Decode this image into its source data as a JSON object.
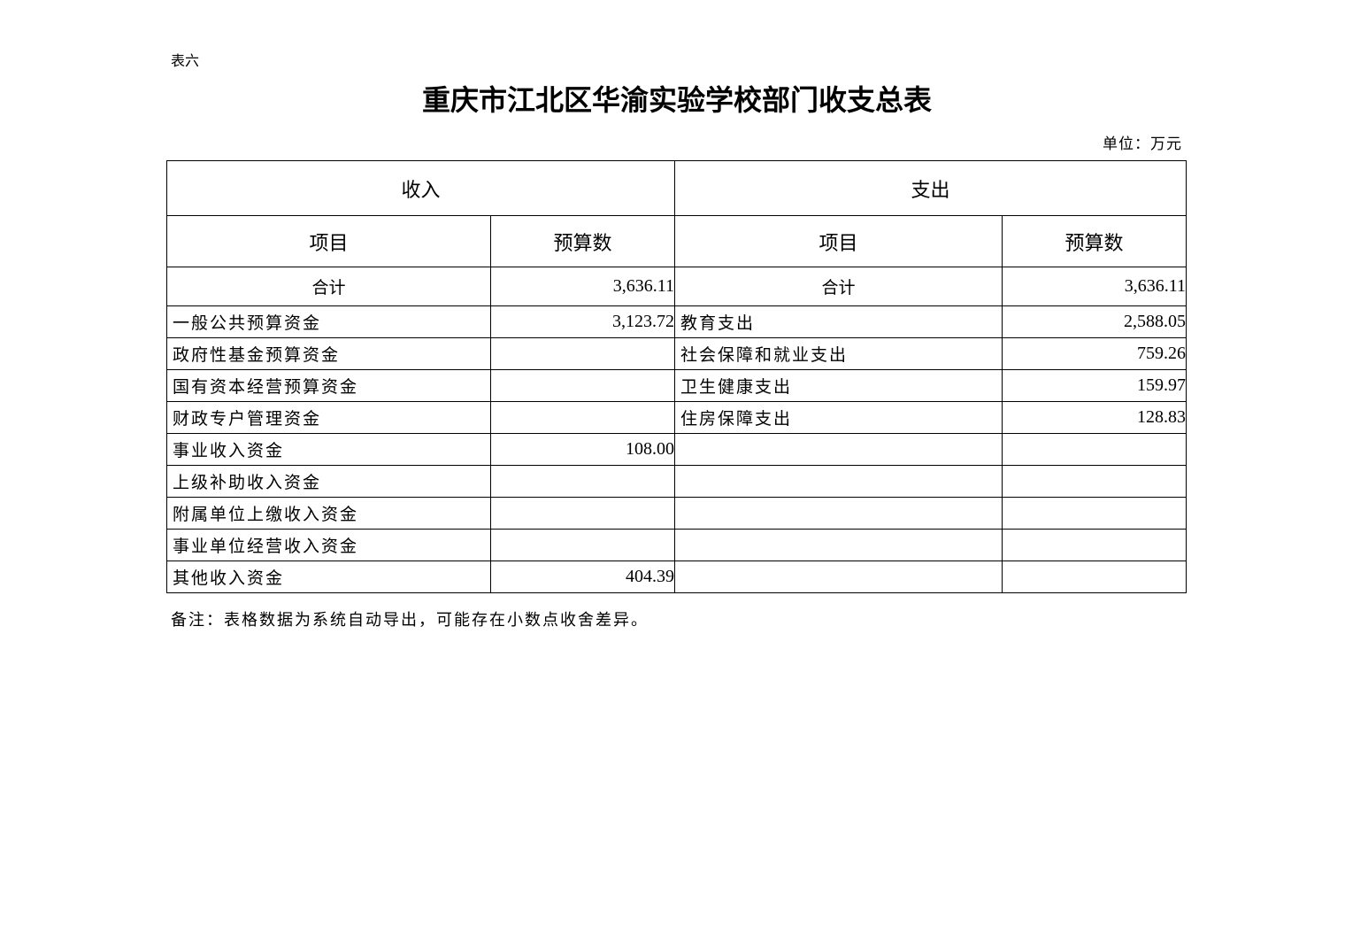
{
  "table_label": "表六",
  "title": "重庆市江北区华渝实验学校部门收支总表",
  "unit": "单位：万元",
  "headers": {
    "income": "收入",
    "expense": "支出",
    "item": "项目",
    "budget": "预算数"
  },
  "total": {
    "income_label": "合计",
    "income_value": "3,636.11",
    "expense_label": "合计",
    "expense_value": "3,636.11"
  },
  "rows": [
    {
      "income_item": "一般公共预算资金",
      "income_value": "3,123.72",
      "expense_item": "教育支出",
      "expense_value": "2,588.05"
    },
    {
      "income_item": "政府性基金预算资金",
      "income_value": "",
      "expense_item": "社会保障和就业支出",
      "expense_value": "759.26"
    },
    {
      "income_item": "国有资本经营预算资金",
      "income_value": "",
      "expense_item": "卫生健康支出",
      "expense_value": "159.97"
    },
    {
      "income_item": "财政专户管理资金",
      "income_value": "",
      "expense_item": "住房保障支出",
      "expense_value": "128.83"
    },
    {
      "income_item": "事业收入资金",
      "income_value": "108.00",
      "expense_item": "",
      "expense_value": ""
    },
    {
      "income_item": "上级补助收入资金",
      "income_value": "",
      "expense_item": "",
      "expense_value": ""
    },
    {
      "income_item": "附属单位上缴收入资金",
      "income_value": "",
      "expense_item": "",
      "expense_value": ""
    },
    {
      "income_item": "事业单位经营收入资金",
      "income_value": "",
      "expense_item": "",
      "expense_value": ""
    },
    {
      "income_item": "其他收入资金",
      "income_value": "404.39",
      "expense_item": "",
      "expense_value": ""
    }
  ],
  "note": "备注：表格数据为系统自动导出，可能存在小数点收舍差异。"
}
